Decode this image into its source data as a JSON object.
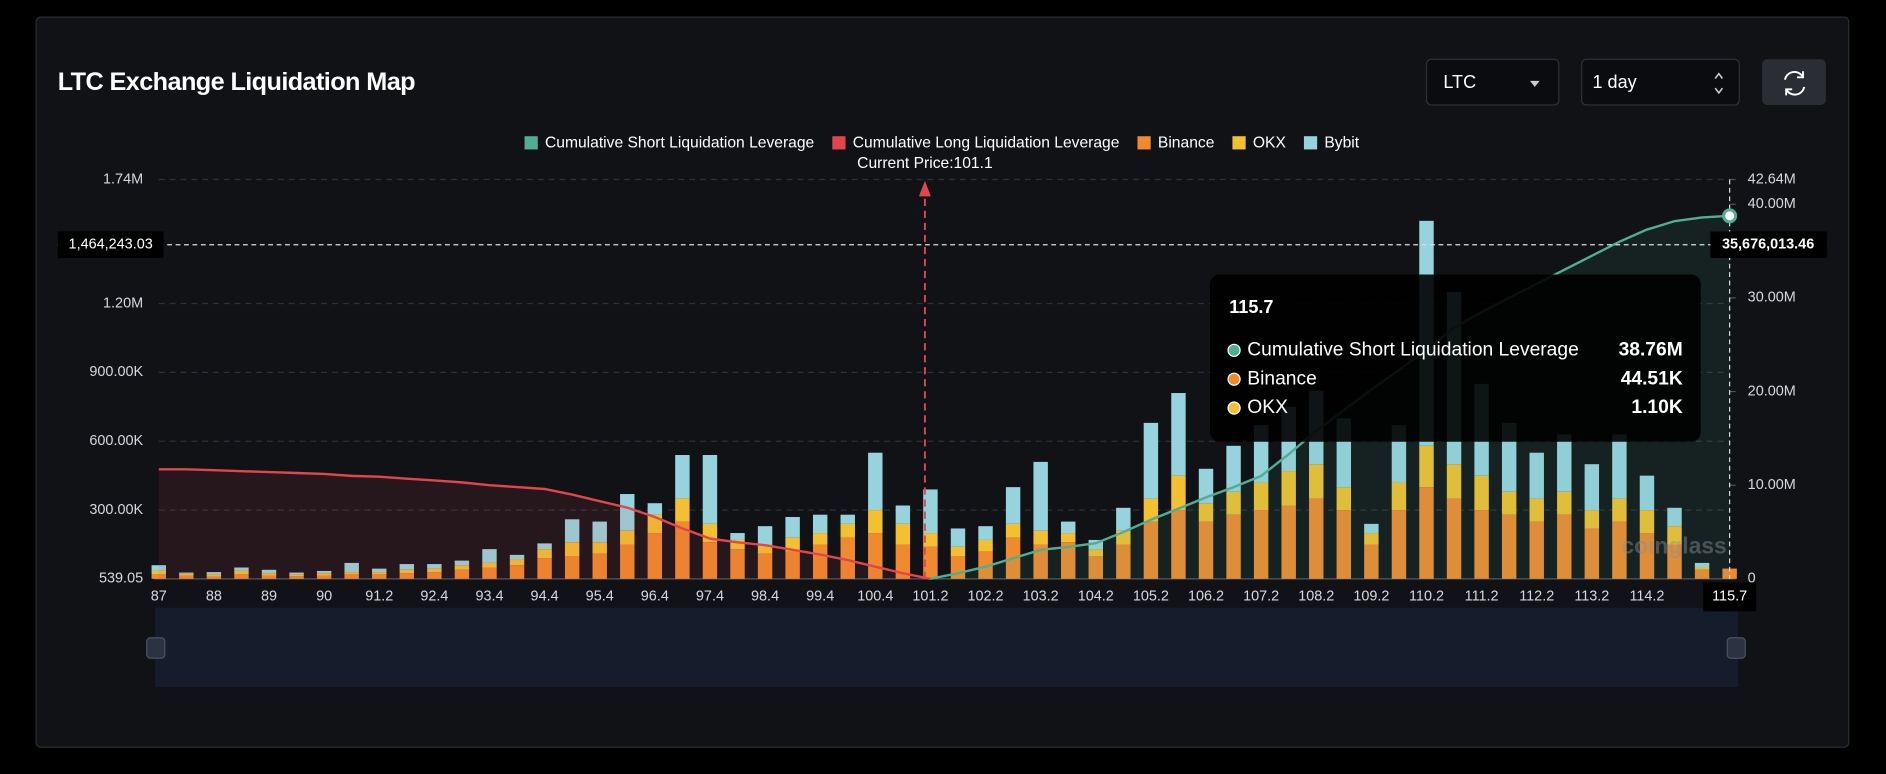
{
  "header": {
    "title": "LTC Exchange Liquidation Map",
    "symbol": "LTC",
    "period": "1 day"
  },
  "chart_data": {
    "type": "bar",
    "categories": [
      "87",
      null,
      "88",
      null,
      "89",
      null,
      "90",
      null,
      "91.2",
      null,
      "92.4",
      null,
      "93.4",
      null,
      "94.4",
      null,
      "95.4",
      null,
      "96.4",
      null,
      "97.4",
      null,
      "98.4",
      null,
      "99.4",
      null,
      "100.4",
      null,
      "101.2",
      null,
      "102.2",
      null,
      "103.2",
      null,
      "104.2",
      null,
      "105.2",
      null,
      "106.2",
      null,
      "107.2",
      null,
      "108.2",
      null,
      "109.2",
      null,
      "110.2",
      null,
      "111.2",
      null,
      "112.2",
      null,
      "113.2",
      null,
      "114.2",
      null,
      null,
      "115.7"
    ],
    "series": [
      {
        "name": "Cumulative Short Liquidation Leverage",
        "color": "#4fae93",
        "type": "line",
        "axis": "y2",
        "values": [
          null,
          null,
          null,
          null,
          null,
          null,
          null,
          null,
          null,
          null,
          null,
          null,
          null,
          null,
          null,
          null,
          null,
          null,
          null,
          null,
          null,
          null,
          null,
          null,
          null,
          null,
          null,
          null,
          0,
          600000,
          1300000,
          2200000,
          3100000,
          3400000,
          3800000,
          5000000,
          6300000,
          7500000,
          8700000,
          9800000,
          11000000,
          13300000,
          15800000,
          18000000,
          20200000,
          22300000,
          24500000,
          26800000,
          28500000,
          30000000,
          31500000,
          33000000,
          34500000,
          36000000,
          37300000,
          38200000,
          38600000,
          38760000
        ]
      },
      {
        "name": "Cumulative Long Liquidation Leverage",
        "color": "#e0464c",
        "type": "line",
        "axis": "y2",
        "values": [
          11700000,
          11700000,
          11600000,
          11500000,
          11400000,
          11300000,
          11200000,
          11000000,
          10900000,
          10700000,
          10500000,
          10300000,
          10000000,
          9800000,
          9600000,
          9000000,
          8300000,
          7600000,
          6600000,
          5400000,
          4300000,
          3900000,
          3600000,
          3100000,
          2600000,
          2000000,
          1300000,
          600000,
          0,
          null,
          null,
          null,
          null,
          null,
          null,
          null,
          null,
          null,
          null,
          null,
          null,
          null,
          null,
          null,
          null,
          null,
          null,
          null,
          null,
          null,
          null,
          null,
          null,
          null,
          null,
          null,
          null,
          null
        ]
      },
      {
        "name": "Binance",
        "color": "#ef8a2e",
        "type": "bar",
        "values": [
          20000,
          15000,
          10000,
          20000,
          15000,
          12000,
          15000,
          20000,
          20000,
          25000,
          30000,
          40000,
          50000,
          60000,
          90000,
          100000,
          110000,
          150000,
          200000,
          250000,
          160000,
          130000,
          110000,
          120000,
          150000,
          180000,
          200000,
          150000,
          140000,
          100000,
          120000,
          180000,
          150000,
          160000,
          100000,
          150000,
          250000,
          300000,
          250000,
          280000,
          300000,
          320000,
          350000,
          300000,
          150000,
          300000,
          400000,
          350000,
          300000,
          280000,
          250000,
          280000,
          220000,
          250000,
          200000,
          150000,
          40000,
          44510
        ]
      },
      {
        "name": "OKX",
        "color": "#f2c030",
        "type": "bar",
        "values": [
          15000,
          8000,
          10000,
          15000,
          10000,
          8000,
          10000,
          10000,
          10000,
          15000,
          15000,
          20000,
          20000,
          25000,
          40000,
          60000,
          50000,
          60000,
          80000,
          100000,
          80000,
          40000,
          40000,
          60000,
          50000,
          60000,
          100000,
          90000,
          60000,
          40000,
          50000,
          60000,
          60000,
          40000,
          30000,
          60000,
          100000,
          150000,
          80000,
          100000,
          120000,
          150000,
          150000,
          100000,
          50000,
          120000,
          180000,
          150000,
          150000,
          100000,
          100000,
          100000,
          80000,
          100000,
          100000,
          80000,
          10000,
          1100
        ]
      },
      {
        "name": "Bybit",
        "color": "#97d3dd",
        "type": "bar",
        "values": [
          25000,
          5000,
          10000,
          15000,
          15000,
          8000,
          10000,
          40000,
          15000,
          25000,
          20000,
          20000,
          60000,
          20000,
          25000,
          100000,
          90000,
          160000,
          50000,
          190000,
          300000,
          30000,
          80000,
          90000,
          80000,
          40000,
          250000,
          80000,
          190000,
          80000,
          60000,
          160000,
          300000,
          50000,
          40000,
          100000,
          330000,
          360000,
          150000,
          200000,
          250000,
          280000,
          320000,
          300000,
          40000,
          250000,
          980000,
          750000,
          400000,
          300000,
          200000,
          250000,
          200000,
          280000,
          150000,
          80000,
          20000,
          0
        ]
      }
    ],
    "ylim": [
      539.05,
      1740000
    ],
    "yticks": [
      539.05,
      {
        "value": 300000,
        "label": "300.00K"
      },
      {
        "value": 600000,
        "label": "600.00K"
      },
      {
        "value": 900000,
        "label": "900.00K"
      },
      {
        "value": 1200000,
        "label": "1.20M"
      },
      {
        "value": 1740000,
        "label": "1.74M"
      }
    ],
    "y2lim": [
      0,
      42640000
    ],
    "y2ticks": [
      0,
      {
        "value": 10000000,
        "label": "10.00M"
      },
      {
        "value": 20000000,
        "label": "20.00M"
      },
      {
        "value": 30000000,
        "label": "30.00M"
      },
      {
        "value": 40000000,
        "label": "40.00M"
      },
      {
        "value": 42640000,
        "label": "42.64M"
      }
    ],
    "grid": true,
    "current_price_label": "Current Price:101.1",
    "crosshair": {
      "y": {
        "value": 1464243.03,
        "label": "1,464,243.03"
      },
      "y2": {
        "value": 35676013.46,
        "label": "35,676,013.46"
      }
    },
    "tooltip_values": [
      "38.76M",
      "44.51K",
      "1.10K"
    ],
    "watermark": "coinglass"
  }
}
